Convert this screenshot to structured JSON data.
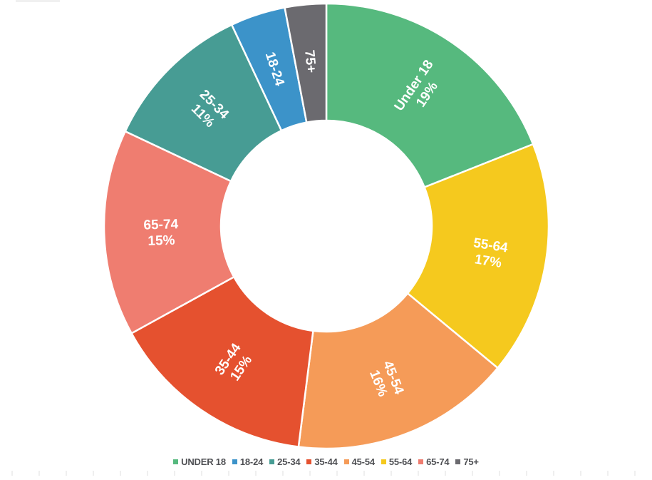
{
  "page": {
    "background": "#FFFFFF"
  },
  "chart_data": {
    "type": "pie",
    "subtype": "donut",
    "title": "",
    "unit": "%",
    "start_angle_deg": 0,
    "direction": "clockwise",
    "inner_radius_ratio": 0.475,
    "slice_label_color": "#FFFFFF",
    "slice_separator_color": "#FFFFFF",
    "slices": [
      {
        "label": "Under 18",
        "value": 19,
        "color": "#56B97E",
        "show_percent": true
      },
      {
        "label": "55-64",
        "value": 17,
        "color": "#F5C91E",
        "show_percent": true
      },
      {
        "label": "45-54",
        "value": 16,
        "color": "#F59B58",
        "show_percent": true
      },
      {
        "label": "35-44",
        "value": 15,
        "color": "#E5512F",
        "show_percent": true
      },
      {
        "label": "65-74",
        "value": 15,
        "color": "#EF7D70",
        "show_percent": true
      },
      {
        "label": "25-34",
        "value": 11,
        "color": "#479C94",
        "show_percent": true
      },
      {
        "label": "18-24",
        "value": 4,
        "color": "#3C93C9",
        "show_percent": false
      },
      {
        "label": "75+",
        "value": 3,
        "color": "#6B6A6F",
        "show_percent": false
      }
    ],
    "legend": {
      "position": "bottom",
      "text_color": "#4F5054",
      "items": [
        {
          "label": "UNDER 18",
          "color": "#56B97E"
        },
        {
          "label": "18-24",
          "color": "#3C93C9"
        },
        {
          "label": "25-34",
          "color": "#479C94"
        },
        {
          "label": "35-44",
          "color": "#E5512F"
        },
        {
          "label": "45-54",
          "color": "#F59B58"
        },
        {
          "label": "55-64",
          "color": "#F5C91E"
        },
        {
          "label": "65-74",
          "color": "#EF7D70"
        },
        {
          "label": "75+",
          "color": "#6B6A6F"
        }
      ]
    }
  }
}
